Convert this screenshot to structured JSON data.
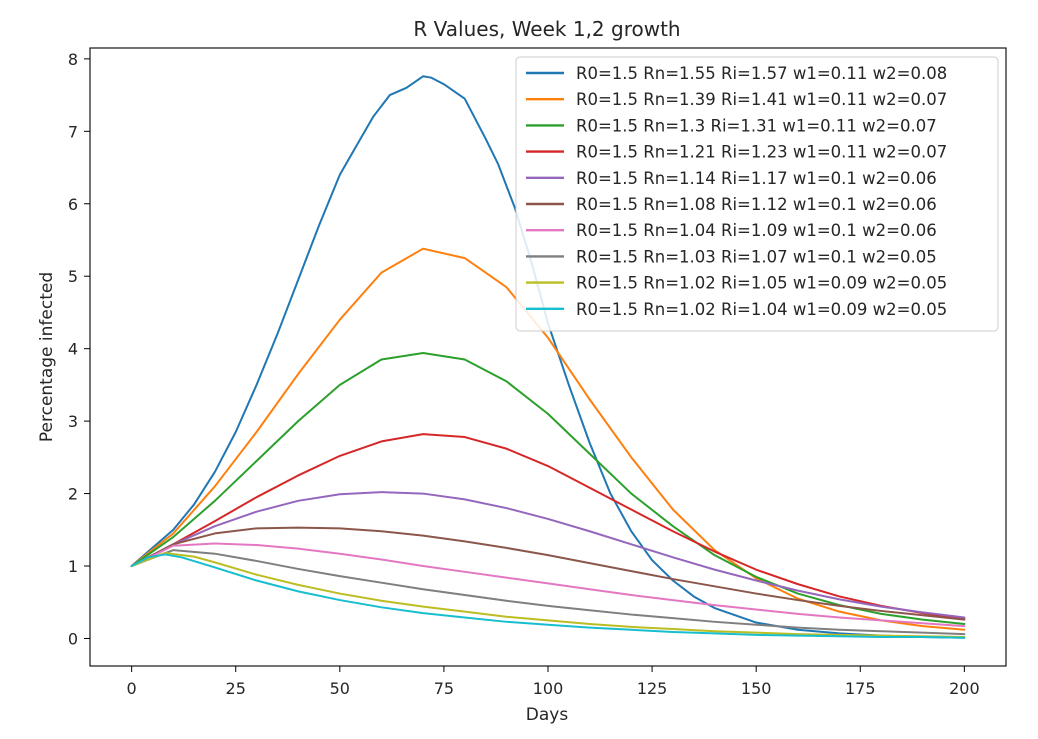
{
  "chart_data": {
    "type": "line",
    "title": "R Values, Week 1,2 growth",
    "xlabel": "Days",
    "ylabel": "Percentage infected",
    "xlim": [
      -10,
      210
    ],
    "ylim": [
      -0.38,
      8.15
    ],
    "xticks": [
      0,
      25,
      50,
      75,
      100,
      125,
      150,
      175,
      200
    ],
    "yticks": [
      0,
      1,
      2,
      3,
      4,
      5,
      6,
      7,
      8
    ],
    "grid": false,
    "legend_position": "top-right",
    "series": [
      {
        "name": "R0=1.5 Rn=1.55 Ri=1.57 w1=0.11 w2=0.08",
        "color": "#1f77b4",
        "x": [
          0,
          5,
          10,
          15,
          20,
          25,
          30,
          35,
          40,
          45,
          50,
          53,
          58,
          62,
          66,
          70,
          72,
          75,
          80,
          85,
          88,
          92,
          96,
          100,
          105,
          110,
          115,
          120,
          125,
          130,
          135,
          140,
          150,
          160,
          170,
          180,
          190,
          200
        ],
        "y": [
          1.0,
          1.25,
          1.5,
          1.85,
          2.3,
          2.85,
          3.5,
          4.2,
          4.95,
          5.7,
          6.4,
          6.7,
          7.2,
          7.5,
          7.6,
          7.76,
          7.74,
          7.65,
          7.45,
          6.9,
          6.55,
          5.95,
          5.2,
          4.35,
          3.5,
          2.7,
          2.0,
          1.48,
          1.08,
          0.8,
          0.58,
          0.42,
          0.22,
          0.12,
          0.07,
          0.04,
          0.02,
          0.01
        ]
      },
      {
        "name": "R0=1.5 Rn=1.39 Ri=1.41 w1=0.11 w2=0.07",
        "color": "#ff7f0e",
        "x": [
          0,
          10,
          20,
          30,
          40,
          50,
          60,
          70,
          80,
          90,
          100,
          110,
          120,
          130,
          140,
          150,
          160,
          170,
          180,
          190,
          200
        ],
        "y": [
          1.0,
          1.45,
          2.1,
          2.85,
          3.65,
          4.4,
          5.05,
          5.38,
          5.25,
          4.85,
          4.15,
          3.3,
          2.5,
          1.78,
          1.22,
          0.83,
          0.55,
          0.37,
          0.25,
          0.17,
          0.12
        ]
      },
      {
        "name": "R0=1.5 Rn=1.3 Ri=1.31 w1=0.11 w2=0.07",
        "color": "#2ca02c",
        "x": [
          0,
          10,
          20,
          30,
          40,
          50,
          60,
          70,
          80,
          90,
          100,
          110,
          120,
          130,
          140,
          150,
          160,
          170,
          180,
          190,
          200
        ],
        "y": [
          1.0,
          1.4,
          1.9,
          2.45,
          3.0,
          3.5,
          3.85,
          3.94,
          3.85,
          3.55,
          3.1,
          2.55,
          2.0,
          1.55,
          1.15,
          0.85,
          0.62,
          0.46,
          0.34,
          0.26,
          0.2
        ]
      },
      {
        "name": "R0=1.5 Rn=1.21 Ri=1.23 w1=0.11 w2=0.07",
        "color": "#d62728",
        "x": [
          0,
          10,
          20,
          30,
          40,
          50,
          60,
          70,
          80,
          90,
          100,
          110,
          120,
          130,
          140,
          150,
          160,
          170,
          180,
          190,
          200
        ],
        "y": [
          1.0,
          1.3,
          1.62,
          1.95,
          2.25,
          2.52,
          2.72,
          2.82,
          2.78,
          2.62,
          2.38,
          2.08,
          1.78,
          1.48,
          1.2,
          0.95,
          0.75,
          0.58,
          0.45,
          0.35,
          0.27
        ]
      },
      {
        "name": "R0=1.5 Rn=1.14 Ri=1.17 w1=0.1 w2=0.06",
        "color": "#9467bd",
        "x": [
          0,
          10,
          20,
          30,
          40,
          50,
          60,
          70,
          80,
          90,
          100,
          110,
          120,
          130,
          140,
          150,
          160,
          170,
          180,
          190,
          200
        ],
        "y": [
          1.0,
          1.3,
          1.55,
          1.75,
          1.9,
          1.99,
          2.02,
          2.0,
          1.92,
          1.8,
          1.65,
          1.48,
          1.3,
          1.12,
          0.95,
          0.8,
          0.66,
          0.54,
          0.44,
          0.36,
          0.29
        ]
      },
      {
        "name": "R0=1.5 Rn=1.08 Ri=1.12 w1=0.1 w2=0.06",
        "color": "#8c564b",
        "x": [
          0,
          10,
          20,
          30,
          40,
          50,
          60,
          70,
          80,
          90,
          100,
          110,
          120,
          130,
          140,
          150,
          160,
          170,
          180,
          190,
          200
        ],
        "y": [
          1.0,
          1.3,
          1.45,
          1.52,
          1.53,
          1.52,
          1.48,
          1.42,
          1.34,
          1.25,
          1.15,
          1.04,
          0.93,
          0.82,
          0.72,
          0.62,
          0.53,
          0.45,
          0.38,
          0.32,
          0.26
        ]
      },
      {
        "name": "R0=1.5 Rn=1.04 Ri=1.09 w1=0.1 w2=0.06",
        "color": "#e377c2",
        "x": [
          0,
          10,
          20,
          30,
          40,
          50,
          60,
          70,
          80,
          90,
          100,
          110,
          120,
          130,
          140,
          150,
          160,
          170,
          180,
          190,
          200
        ],
        "y": [
          1.0,
          1.28,
          1.31,
          1.29,
          1.24,
          1.17,
          1.09,
          1.0,
          0.92,
          0.84,
          0.76,
          0.68,
          0.6,
          0.53,
          0.46,
          0.4,
          0.34,
          0.29,
          0.25,
          0.21,
          0.17
        ]
      },
      {
        "name": "R0=1.5 Rn=1.03 Ri=1.07 w1=0.1 w2=0.05",
        "color": "#7f7f7f",
        "x": [
          0,
          10,
          20,
          30,
          40,
          50,
          60,
          70,
          80,
          90,
          100,
          110,
          120,
          130,
          140,
          150,
          160,
          170,
          180,
          190,
          200
        ],
        "y": [
          1.0,
          1.22,
          1.17,
          1.07,
          0.96,
          0.86,
          0.77,
          0.68,
          0.6,
          0.52,
          0.45,
          0.39,
          0.33,
          0.28,
          0.23,
          0.19,
          0.15,
          0.12,
          0.1,
          0.08,
          0.06
        ]
      },
      {
        "name": "R0=1.5 Rn=1.02 Ri=1.05 w1=0.09 w2=0.05",
        "color": "#bcbd22",
        "x": [
          0,
          8,
          15,
          20,
          30,
          40,
          50,
          60,
          70,
          80,
          90,
          100,
          110,
          120,
          130,
          140,
          150,
          160,
          170,
          180,
          190,
          200
        ],
        "y": [
          1.0,
          1.18,
          1.13,
          1.05,
          0.88,
          0.74,
          0.62,
          0.52,
          0.44,
          0.37,
          0.3,
          0.25,
          0.2,
          0.16,
          0.13,
          0.1,
          0.08,
          0.06,
          0.05,
          0.04,
          0.03,
          0.02
        ]
      },
      {
        "name": "R0=1.5 Rn=1.02 Ri=1.04 w1=0.09 w2=0.05",
        "color": "#17becf",
        "x": [
          0,
          4,
          8,
          12,
          20,
          30,
          40,
          50,
          60,
          70,
          80,
          90,
          100,
          110,
          120,
          130,
          140,
          150,
          160,
          170,
          180,
          190,
          200
        ],
        "y": [
          1.0,
          1.12,
          1.16,
          1.12,
          0.98,
          0.8,
          0.65,
          0.53,
          0.43,
          0.35,
          0.29,
          0.23,
          0.19,
          0.15,
          0.12,
          0.09,
          0.07,
          0.05,
          0.04,
          0.03,
          0.02,
          0.02,
          0.01
        ]
      }
    ]
  }
}
